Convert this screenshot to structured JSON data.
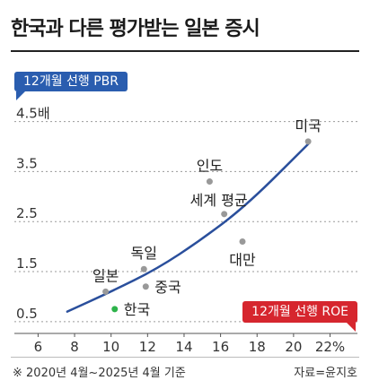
{
  "title": "한국과 다른 평가받는 일본 증시",
  "footnote": "※ 2020년 4월~2025년 4월 기준",
  "source": "자료=윤지호",
  "chart_data": {
    "type": "scatter",
    "ylabel": "12개월 선행 PBR",
    "xlabel": "12개월 선행 ROE",
    "xlim": [
      4.7,
      23.5
    ],
    "ylim": [
      0.3,
      4.6
    ],
    "x_ticks": [
      {
        "value": 6,
        "label": "6"
      },
      {
        "value": 8,
        "label": "8"
      },
      {
        "value": 10,
        "label": "10"
      },
      {
        "value": 12,
        "label": "12"
      },
      {
        "value": 14,
        "label": "14"
      },
      {
        "value": 16,
        "label": "16"
      },
      {
        "value": 18,
        "label": "18"
      },
      {
        "value": 20,
        "label": "20"
      },
      {
        "value": 22,
        "label": "22%"
      }
    ],
    "y_ticks": [
      {
        "value": 0.5,
        "label": "0.5"
      },
      {
        "value": 1.5,
        "label": "1.5"
      },
      {
        "value": 2.5,
        "label": "2.5"
      },
      {
        "value": 3.5,
        "label": "3.5"
      },
      {
        "value": 4.5,
        "label": "4.5배"
      }
    ],
    "grid": true,
    "points": [
      {
        "name": "미국",
        "x": 20.8,
        "y": 4.1,
        "color": "#999999"
      },
      {
        "name": "인도",
        "x": 15.4,
        "y": 3.3,
        "color": "#999999"
      },
      {
        "name": "세계 평균",
        "x": 16.2,
        "y": 2.65,
        "color": "#999999"
      },
      {
        "name": "대만",
        "x": 17.2,
        "y": 2.1,
        "color": "#999999"
      },
      {
        "name": "독일",
        "x": 11.8,
        "y": 1.55,
        "color": "#999999"
      },
      {
        "name": "일본",
        "x": 9.7,
        "y": 1.1,
        "color": "#999999"
      },
      {
        "name": "중국",
        "x": 11.9,
        "y": 1.2,
        "color": "#999999"
      },
      {
        "name": "한국",
        "x": 10.2,
        "y": 0.75,
        "color": "#2db34a"
      }
    ],
    "trendline": {
      "color": "#2a4f9c",
      "points": [
        [
          7.6,
          0.7
        ],
        [
          10,
          1.1
        ],
        [
          12.5,
          1.55
        ],
        [
          15,
          2.15
        ],
        [
          17.5,
          2.85
        ],
        [
          20.8,
          4.05
        ]
      ]
    }
  }
}
